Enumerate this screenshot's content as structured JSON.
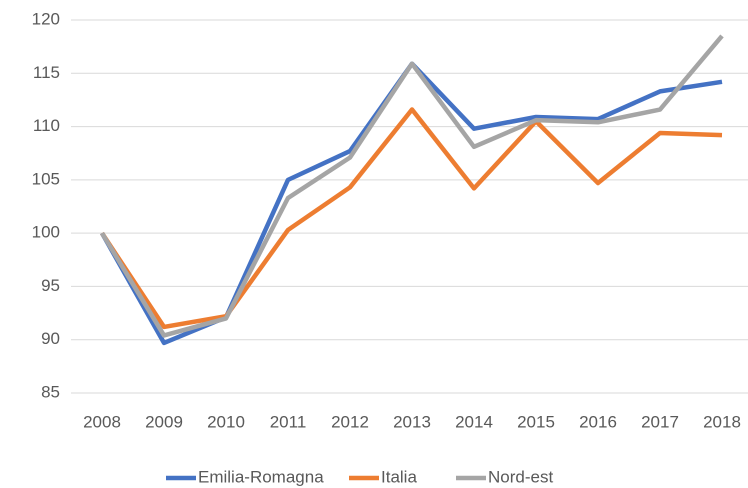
{
  "chart_data": {
    "type": "line",
    "categories": [
      "2008",
      "2009",
      "2010",
      "2011",
      "2012",
      "2013",
      "2014",
      "2015",
      "2016",
      "2017",
      "2018"
    ],
    "series": [
      {
        "name": "Emilia-Romagna",
        "color": "#4472c4",
        "values": [
          100,
          89.7,
          92.1,
          105,
          107.7,
          115.9,
          109.8,
          110.9,
          110.7,
          113.3,
          114.2
        ]
      },
      {
        "name": "Italia",
        "color": "#ed7d31",
        "values": [
          100,
          91.2,
          92.2,
          100.3,
          104.3,
          111.6,
          104.2,
          110.5,
          104.7,
          109.4,
          109.2
        ]
      },
      {
        "name": "Nord-est",
        "color": "#a5a5a5",
        "values": [
          100,
          90.4,
          92,
          103.3,
          107.1,
          115.9,
          108.1,
          110.6,
          110.4,
          111.6,
          118.5
        ]
      }
    ],
    "ylim": [
      85,
      120
    ],
    "yticks": [
      85,
      90,
      95,
      100,
      105,
      110,
      115,
      120
    ],
    "grid": true,
    "legend": "bottom"
  }
}
